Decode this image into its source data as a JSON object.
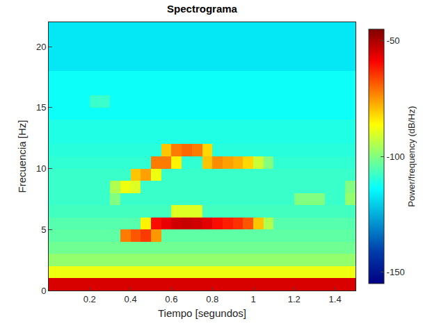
{
  "chart_data": {
    "type": "heatmap",
    "title": "Spectrograma",
    "x_label": "Tiempo [segundos]",
    "y_label": "Frecuencia [Hz]",
    "x": [
      0.025,
      0.075,
      0.125,
      0.175,
      0.225,
      0.275,
      0.325,
      0.375,
      0.425,
      0.475,
      0.525,
      0.575,
      0.625,
      0.675,
      0.725,
      0.775,
      0.825,
      0.875,
      0.925,
      0.975,
      1.025,
      1.075,
      1.125,
      1.175,
      1.225,
      1.275,
      1.325,
      1.375,
      1.425,
      1.475
    ],
    "y": [
      0.5,
      1.5,
      2.5,
      3.5,
      4.5,
      5.5,
      6.5,
      7.5,
      8.5,
      9.5,
      10.5,
      11.5,
      12.5,
      13.5,
      14.5,
      15.5,
      16.5,
      17.5,
      18.5,
      19.5,
      20.5,
      21.5
    ],
    "z": [
      [
        -55,
        -55,
        -55,
        -55,
        -55,
        -55,
        -55,
        -55,
        -55,
        -55,
        -55,
        -55,
        -55,
        -55,
        -55,
        -55,
        -55,
        -55,
        -55,
        -55,
        -55,
        -55,
        -55,
        -55,
        -55,
        -55,
        -55,
        -55,
        -55,
        -55
      ],
      [
        -88,
        -88,
        -88,
        -88,
        -88,
        -88,
        -88,
        -88,
        -88,
        -88,
        -88,
        -88,
        -88,
        -88,
        -88,
        -88,
        -88,
        -88,
        -88,
        -88,
        -88,
        -88,
        -88,
        -88,
        -88,
        -88,
        -88,
        -88,
        -88,
        -88
      ],
      [
        -98,
        -98,
        -98,
        -98,
        -98,
        -98,
        -98,
        -98,
        -98,
        -98,
        -98,
        -98,
        -98,
        -98,
        -98,
        -98,
        -98,
        -98,
        -98,
        -98,
        -98,
        -98,
        -98,
        -98,
        -98,
        -98,
        -98,
        -98,
        -98,
        -98
      ],
      [
        -102,
        -102,
        -102,
        -102,
        -102,
        -102,
        -102,
        -102,
        -102,
        -102,
        -102,
        -102,
        -102,
        -102,
        -102,
        -102,
        -102,
        -102,
        -102,
        -102,
        -102,
        -102,
        -102,
        -102,
        -102,
        -102,
        -102,
        -102,
        -102,
        -102
      ],
      [
        -104,
        -104,
        -104,
        -104,
        -104,
        -104,
        -104,
        -72,
        -68,
        -65,
        -75,
        -104,
        -104,
        -104,
        -104,
        -104,
        -104,
        -104,
        -104,
        -104,
        -104,
        -104,
        -104,
        -104,
        -104,
        -104,
        -104,
        -104,
        -104,
        -104
      ],
      [
        -105,
        -105,
        -105,
        -105,
        -105,
        -105,
        -105,
        -105,
        -105,
        -85,
        -60,
        -57,
        -54,
        -53,
        -54,
        -56,
        -60,
        -62,
        -64,
        -68,
        -80,
        -95,
        -105,
        -105,
        -105,
        -105,
        -105,
        -105,
        -105,
        -105
      ],
      [
        -107,
        -107,
        -107,
        -107,
        -107,
        -107,
        -107,
        -107,
        -107,
        -107,
        -107,
        -107,
        -90,
        -90,
        -90,
        -107,
        -107,
        -107,
        -107,
        -107,
        -107,
        -107,
        -107,
        -107,
        -107,
        -107,
        -107,
        -107,
        -107,
        -107
      ],
      [
        -108,
        -108,
        -108,
        -108,
        -108,
        -108,
        -100,
        -108,
        -108,
        -108,
        -108,
        -108,
        -108,
        -108,
        -108,
        -108,
        -108,
        -108,
        -108,
        -108,
        -108,
        -108,
        -108,
        -108,
        -100,
        -100,
        -100,
        -108,
        -108,
        -98
      ],
      [
        -108,
        -108,
        -108,
        -108,
        -108,
        -108,
        -95,
        -88,
        -90,
        -108,
        -108,
        -108,
        -108,
        -108,
        -108,
        -108,
        -108,
        -108,
        -108,
        -108,
        -108,
        -108,
        -108,
        -108,
        -108,
        -108,
        -108,
        -108,
        -108,
        -100
      ],
      [
        -108,
        -108,
        -108,
        -108,
        -108,
        -108,
        -108,
        -108,
        -80,
        -76,
        -88,
        -108,
        -108,
        -108,
        -108,
        -108,
        -108,
        -108,
        -108,
        -108,
        -108,
        -108,
        -108,
        -108,
        -108,
        -108,
        -108,
        -108,
        -108,
        -108
      ],
      [
        -109,
        -109,
        -109,
        -109,
        -109,
        -109,
        -109,
        -109,
        -109,
        -109,
        -72,
        -72,
        -85,
        -109,
        -109,
        -80,
        -74,
        -76,
        -78,
        -82,
        -92,
        -100,
        -109,
        -109,
        -109,
        -109,
        -109,
        -109,
        -109,
        -109
      ],
      [
        -110,
        -110,
        -110,
        -110,
        -110,
        -110,
        -110,
        -110,
        -110,
        -110,
        -110,
        -80,
        -72,
        -70,
        -72,
        -82,
        -110,
        -110,
        -110,
        -110,
        -110,
        -110,
        -110,
        -110,
        -110,
        -110,
        -110,
        -110,
        -110,
        -110
      ],
      [
        -111,
        -111,
        -111,
        -111,
        -111,
        -111,
        -111,
        -111,
        -111,
        -111,
        -111,
        -111,
        -111,
        -111,
        -111,
        -111,
        -111,
        -111,
        -111,
        -111,
        -111,
        -111,
        -111,
        -111,
        -111,
        -111,
        -111,
        -111,
        -111,
        -111
      ],
      [
        -111,
        -111,
        -111,
        -111,
        -111,
        -111,
        -111,
        -111,
        -111,
        -111,
        -111,
        -111,
        -111,
        -111,
        -111,
        -111,
        -111,
        -111,
        -111,
        -111,
        -111,
        -111,
        -111,
        -111,
        -111,
        -111,
        -111,
        -111,
        -111,
        -111
      ],
      [
        -113,
        -113,
        -113,
        -113,
        -113,
        -113,
        -113,
        -113,
        -113,
        -113,
        -113,
        -113,
        -113,
        -113,
        -113,
        -113,
        -113,
        -113,
        -113,
        -113,
        -113,
        -113,
        -113,
        -113,
        -113,
        -113,
        -113,
        -113,
        -113,
        -113
      ],
      [
        -113,
        -113,
        -113,
        -113,
        -108,
        -108,
        -113,
        -113,
        -113,
        -113,
        -113,
        -113,
        -113,
        -113,
        -113,
        -113,
        -113,
        -113,
        -113,
        -113,
        -113,
        -113,
        -113,
        -113,
        -113,
        -113,
        -113,
        -113,
        -113,
        -113
      ],
      [
        -113,
        -113,
        -113,
        -113,
        -113,
        -113,
        -113,
        -113,
        -113,
        -113,
        -113,
        -113,
        -113,
        -113,
        -113,
        -113,
        -113,
        -113,
        -113,
        -113,
        -113,
        -113,
        -113,
        -113,
        -113,
        -113,
        -113,
        -113,
        -113,
        -113
      ],
      [
        -113,
        -113,
        -113,
        -113,
        -113,
        -113,
        -113,
        -113,
        -113,
        -113,
        -113,
        -113,
        -113,
        -113,
        -113,
        -113,
        -113,
        -113,
        -113,
        -113,
        -113,
        -113,
        -113,
        -113,
        -113,
        -113,
        -113,
        -113,
        -113,
        -113
      ],
      [
        -117,
        -117,
        -117,
        -117,
        -117,
        -117,
        -117,
        -117,
        -117,
        -117,
        -117,
        -117,
        -117,
        -117,
        -117,
        -117,
        -117,
        -117,
        -117,
        -117,
        -117,
        -117,
        -117,
        -117,
        -117,
        -117,
        -117,
        -117,
        -117,
        -117
      ],
      [
        -117,
        -117,
        -117,
        -117,
        -117,
        -117,
        -117,
        -117,
        -117,
        -117,
        -117,
        -117,
        -117,
        -117,
        -117,
        -117,
        -117,
        -117,
        -117,
        -117,
        -117,
        -117,
        -117,
        -117,
        -117,
        -117,
        -117,
        -117,
        -117,
        -117
      ],
      [
        -117,
        -117,
        -117,
        -117,
        -117,
        -117,
        -117,
        -117,
        -117,
        -117,
        -117,
        -117,
        -117,
        -117,
        -117,
        -117,
        -117,
        -117,
        -117,
        -117,
        -117,
        -117,
        -117,
        -117,
        -117,
        -117,
        -117,
        -117,
        -117,
        -117
      ],
      [
        -117,
        -117,
        -117,
        -117,
        -117,
        -117,
        -117,
        -117,
        -117,
        -117,
        -117,
        -117,
        -117,
        -117,
        -117,
        -117,
        -117,
        -117,
        -117,
        -117,
        -117,
        -117,
        -117,
        -117,
        -117,
        -117,
        -117,
        -117,
        -117,
        -117
      ]
    ],
    "xlim": [
      0,
      1.5
    ],
    "xticks": [
      0.2,
      0.4,
      0.6,
      0.8,
      1,
      1.2,
      1.4
    ],
    "ylim": [
      0,
      22
    ],
    "yticks": [
      0,
      5,
      10,
      15,
      20
    ],
    "color": "jet",
    "colorbar": {
      "title": "Power/frequency (dB/Hz)",
      "range": [
        -155,
        -45
      ],
      "ticks": [
        -50,
        -100,
        -150
      ]
    }
  }
}
